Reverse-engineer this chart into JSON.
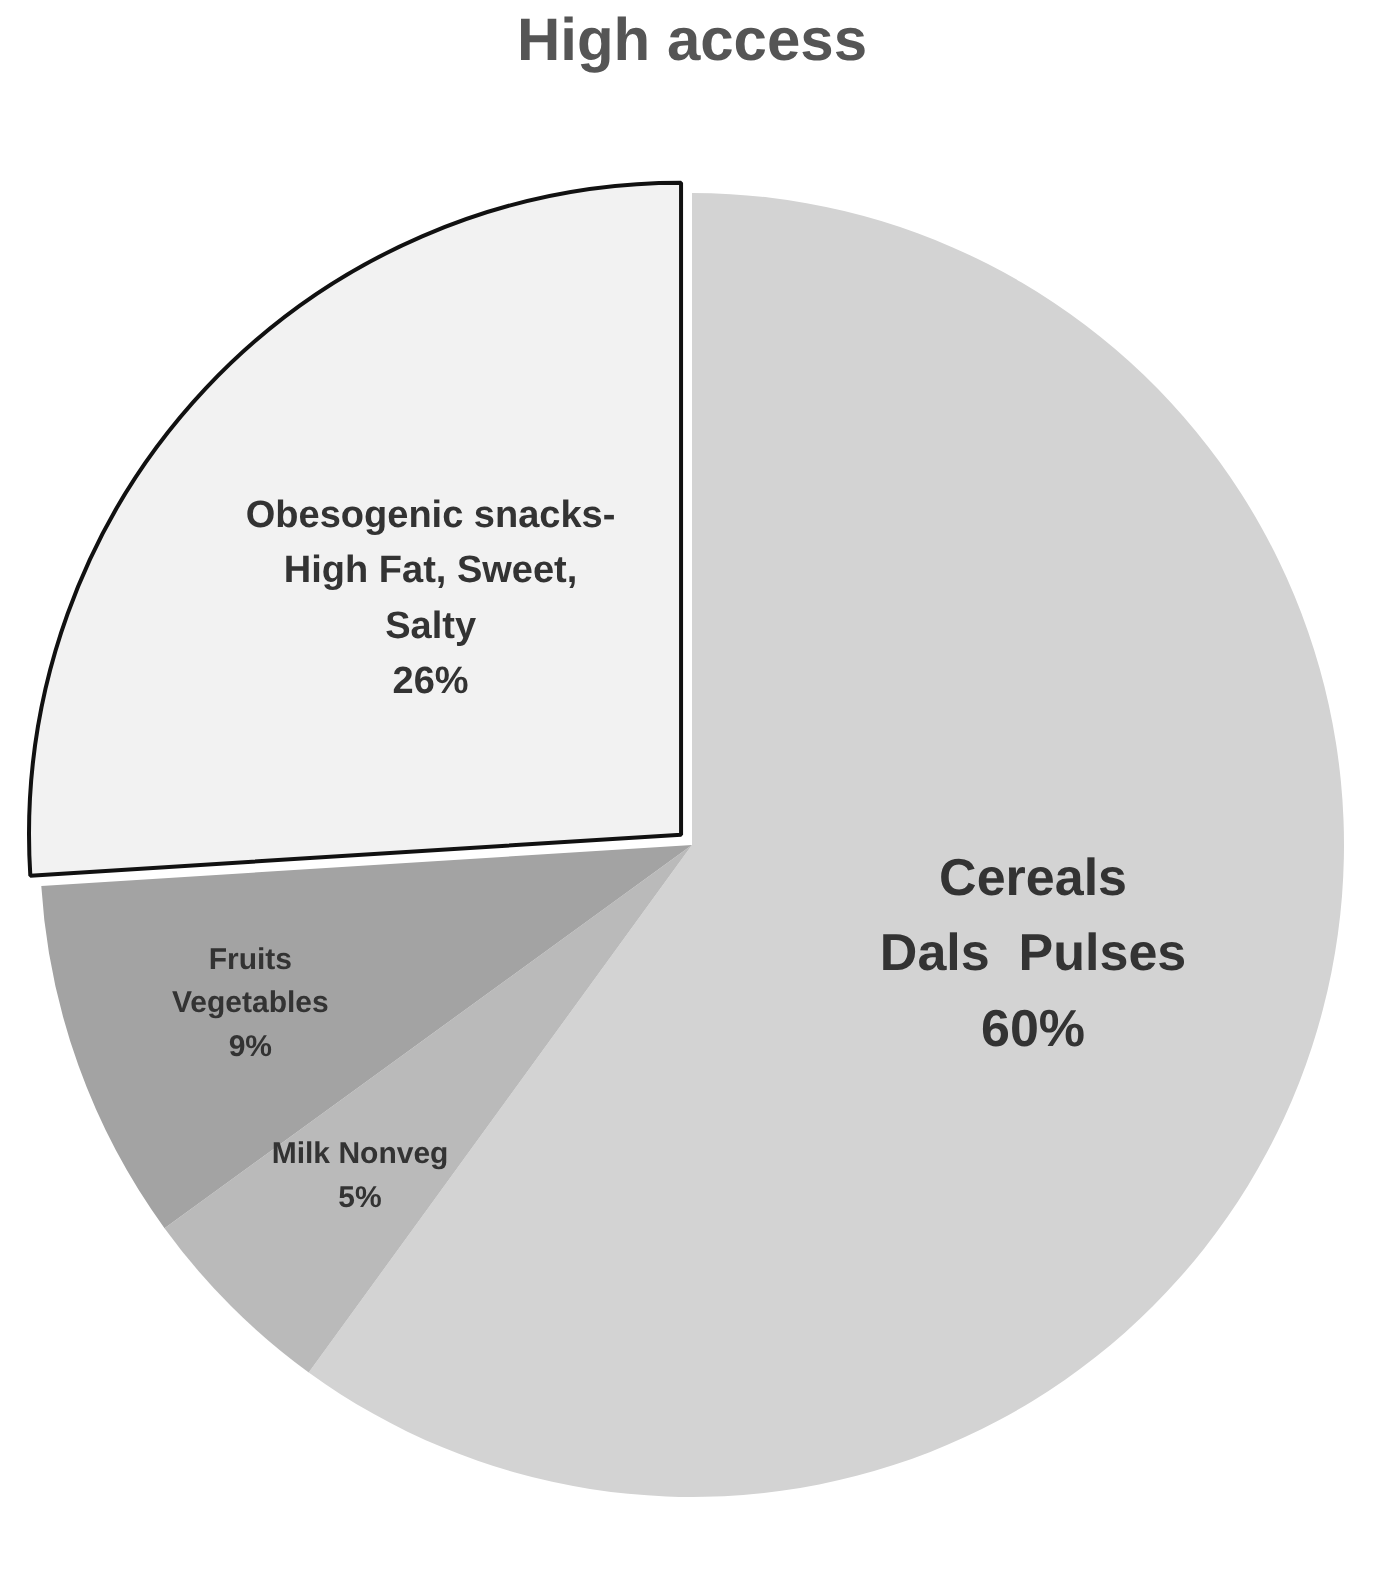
{
  "chart_data": {
    "type": "pie",
    "title": "High access",
    "categories": [
      "Cereals\nDals  Pulses",
      "Milk Nonveg",
      "Fruits\nVegetables",
      "Obesogenic snacks-\nHigh Fat, Sweet,\nSalty"
    ],
    "values": [
      60,
      5,
      9,
      26
    ],
    "colors": [
      "#d3d3d3",
      "#bababa",
      "#a3a3a3",
      "#f2f2f2"
    ],
    "value_labels": [
      "60%",
      "5%",
      "9%",
      "26%"
    ]
  }
}
